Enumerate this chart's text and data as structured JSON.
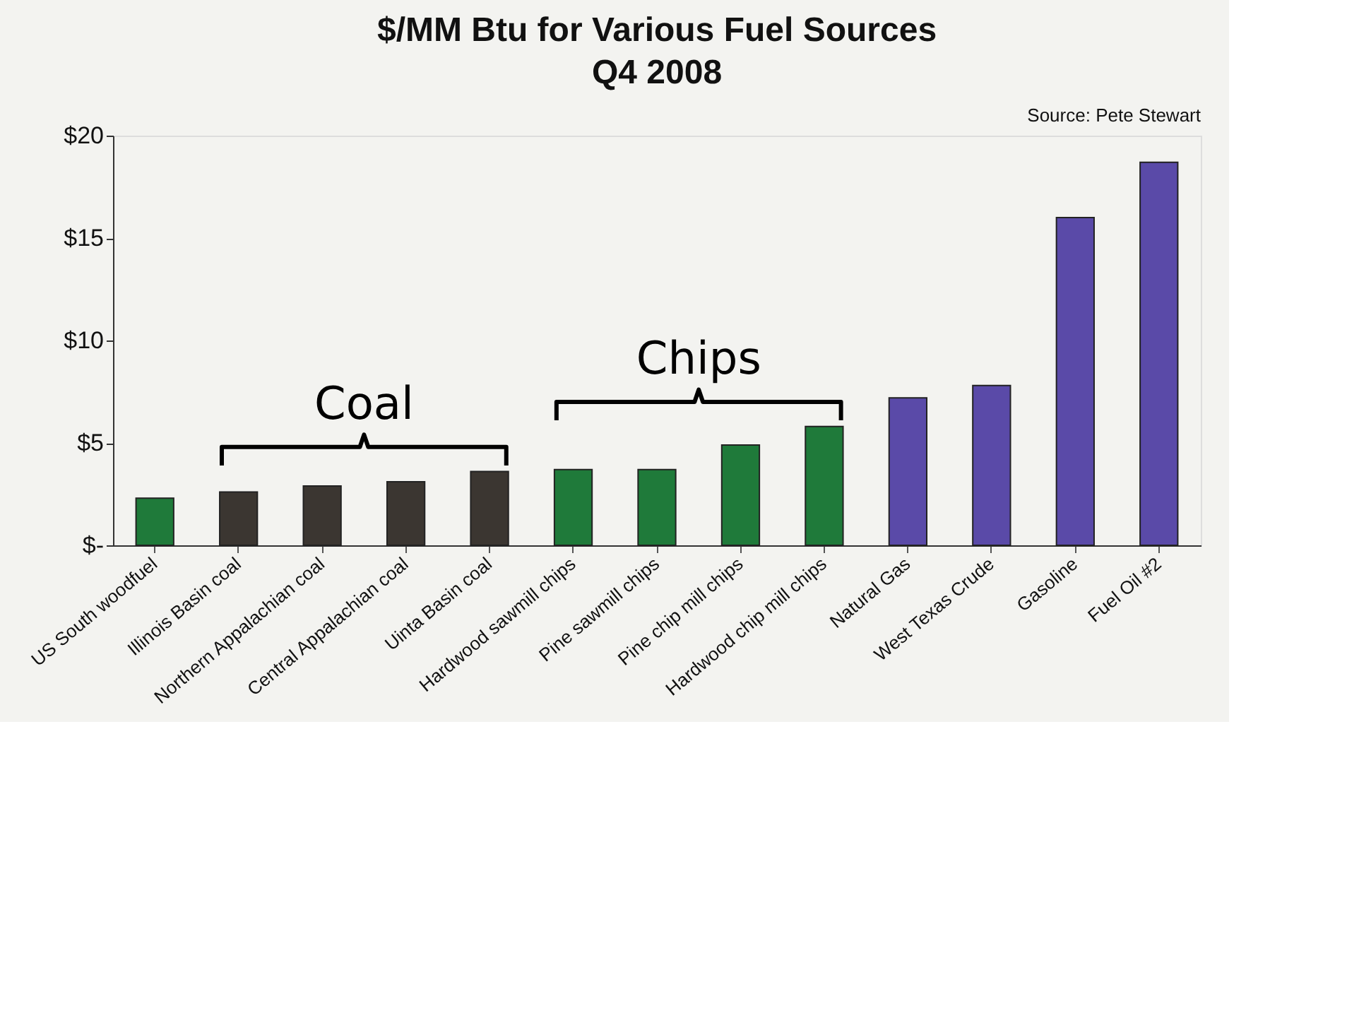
{
  "chart_data": {
    "type": "bar",
    "title": "$/MM Btu for Various Fuel Sources",
    "subtitle": "Q4 2008",
    "categories": [
      "US South woodfuel",
      "Illinois Basin coal",
      "Northern Appalachian coal",
      "Central Appalachian coal",
      "Uinta Basin coal",
      "Hardwood sawmill chips",
      "Pine sawmill chips",
      "Pine chip mill chips",
      "Hardwood chip mill chips",
      "Natural Gas",
      "West Texas Crude",
      "Gasoline",
      "Fuel Oil #2"
    ],
    "values": [
      2.3,
      2.6,
      2.9,
      3.1,
      3.6,
      3.7,
      3.7,
      4.9,
      5.8,
      7.2,
      7.8,
      16.0,
      18.7
    ],
    "colors": [
      "#1f7a3a",
      "#3b3631",
      "#3b3631",
      "#3b3631",
      "#3b3631",
      "#1f7a3a",
      "#1f7a3a",
      "#1f7a3a",
      "#1f7a3a",
      "#5a4aa8",
      "#5a4aa8",
      "#5a4aa8",
      "#5a4aa8"
    ],
    "ylim": [
      0,
      20
    ],
    "yticks": [
      {
        "value": 0,
        "label": "$-"
      },
      {
        "value": 5,
        "label": "$5"
      },
      {
        "value": 10,
        "label": "$10"
      },
      {
        "value": 15,
        "label": "$15"
      },
      {
        "value": 20,
        "label": "$20"
      }
    ],
    "grid": false,
    "annotations": [
      "Source: Pete Stewart",
      "Coal",
      "Chips"
    ]
  }
}
